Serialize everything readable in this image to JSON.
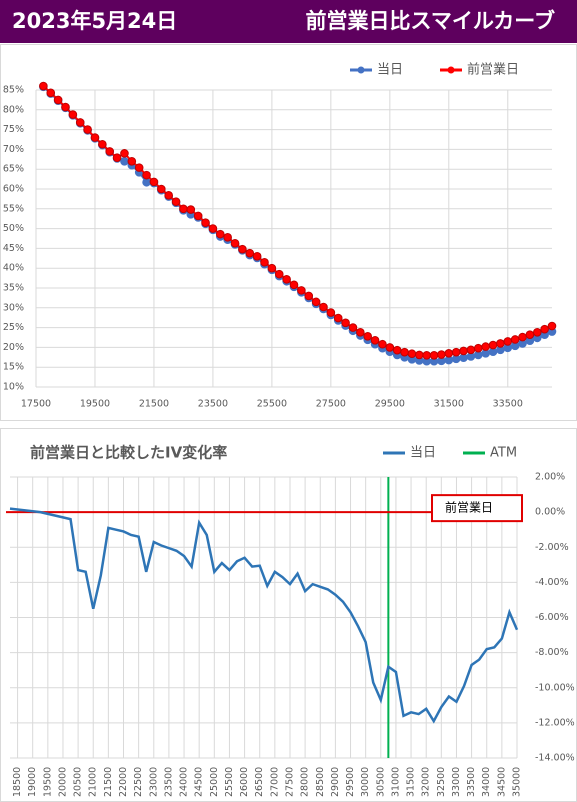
{
  "header": {
    "date": "2023年5月24日",
    "title": "前営業日比スマイルカーブ"
  },
  "chart_data": [
    {
      "type": "line",
      "grid": true,
      "y_axis_side": "left",
      "legend": "top-right",
      "x": [
        17750,
        18000,
        18250,
        18500,
        18750,
        19000,
        19250,
        19500,
        19750,
        20000,
        20250,
        20500,
        20750,
        21000,
        21250,
        21500,
        21750,
        22000,
        22250,
        22500,
        22750,
        23000,
        23250,
        23500,
        23750,
        24000,
        24250,
        24500,
        24750,
        25000,
        25250,
        25500,
        25750,
        26000,
        26250,
        26500,
        26750,
        27000,
        27250,
        27500,
        27750,
        28000,
        28250,
        28500,
        28750,
        29000,
        29250,
        29500,
        29750,
        30000,
        30250,
        30500,
        30750,
        31000,
        31250,
        31500,
        31750,
        32000,
        32250,
        32500,
        32750,
        33000,
        33250,
        33500,
        33750,
        34000,
        34250,
        34500,
        34750,
        35000
      ],
      "xlim": [
        17500,
        35000
      ],
      "xticks": [
        17500,
        19500,
        21500,
        23500,
        25500,
        27500,
        29500,
        31500,
        33500
      ],
      "ylim": [
        10,
        85
      ],
      "yticks": [
        {
          "value": 10,
          "label": "10%"
        },
        {
          "value": 15,
          "label": "15%"
        },
        {
          "value": 20,
          "label": "20%"
        },
        {
          "value": 25,
          "label": "25%"
        },
        {
          "value": 30,
          "label": "30%"
        },
        {
          "value": 35,
          "label": "35%"
        },
        {
          "value": 40,
          "label": "40%"
        },
        {
          "value": 45,
          "label": "45%"
        },
        {
          "value": 50,
          "label": "50%"
        },
        {
          "value": 55,
          "label": "55%"
        },
        {
          "value": 60,
          "label": "60%"
        },
        {
          "value": 65,
          "label": "65%"
        },
        {
          "value": 70,
          "label": "70%"
        },
        {
          "value": 75,
          "label": "75%"
        },
        {
          "value": 80,
          "label": "80%"
        },
        {
          "value": 85,
          "label": "85%"
        }
      ],
      "series": [
        {
          "name": "当日",
          "color": "#4472c4",
          "markers": true,
          "values": [
            85.8,
            84.1,
            82.3,
            80.5,
            78.6,
            76.6,
            74.8,
            72.8,
            71.1,
            69.3,
            67.7,
            67,
            66,
            64.2,
            61.7,
            61.5,
            59.7,
            58.1,
            56.5,
            54.6,
            53.6,
            52.8,
            51.2,
            49.7,
            48,
            47.2,
            46,
            44.5,
            43.3,
            42.6,
            41,
            39.6,
            38,
            36.7,
            35.3,
            33.9,
            32.5,
            31,
            29.7,
            28.2,
            26.8,
            25.5,
            24.2,
            23,
            21.9,
            20.8,
            19.8,
            18.9,
            18.1,
            17.5,
            17,
            16.7,
            16.5,
            16.5,
            16.6,
            16.8,
            17.1,
            17.4,
            17.7,
            18.1,
            18.5,
            18.9,
            19.4,
            19.9,
            20.4,
            21,
            21.7,
            22.4,
            23.2,
            24
          ]
        },
        {
          "name": "前営業日",
          "color": "#ff0000",
          "markers": true,
          "values": [
            86,
            84.3,
            82.5,
            80.7,
            78.8,
            76.8,
            75,
            73,
            71.3,
            69.5,
            67.9,
            69,
            67,
            65.4,
            63.5,
            61.8,
            60,
            58.4,
            56.8,
            55,
            54.8,
            53.2,
            51.5,
            50,
            48.6,
            47.8,
            46.3,
            44.8,
            43.8,
            43,
            41.5,
            40,
            38.5,
            37.2,
            35.8,
            34.4,
            33,
            31.5,
            30.2,
            28.8,
            27.4,
            26.2,
            25,
            23.8,
            22.8,
            21.8,
            20.8,
            20,
            19.3,
            18.8,
            18.4,
            18.1,
            18,
            18,
            18.2,
            18.5,
            18.8,
            19.1,
            19.4,
            19.8,
            20.2,
            20.6,
            21,
            21.5,
            22,
            22.6,
            23.2,
            23.8,
            24.6,
            25.4
          ]
        }
      ]
    },
    {
      "type": "line",
      "title": "前営業日と比較したIV変化率",
      "grid": true,
      "y_axis_side": "right",
      "legend": "top-right",
      "x": [
        18250,
        18500,
        18750,
        19000,
        19250,
        19500,
        19750,
        20000,
        20250,
        20500,
        20750,
        21000,
        21250,
        21500,
        21750,
        22000,
        22250,
        22500,
        22750,
        23000,
        23250,
        23500,
        23750,
        24000,
        24250,
        24500,
        24750,
        25000,
        25250,
        25500,
        25750,
        26000,
        26250,
        26500,
        26750,
        27000,
        27250,
        27500,
        27750,
        28000,
        28250,
        28500,
        28750,
        29000,
        29250,
        29500,
        29750,
        30000,
        30250,
        30500,
        30750,
        31000,
        31250,
        31500,
        31750,
        32000,
        32250,
        32500,
        32750,
        33000,
        33250,
        33500,
        33750,
        34000,
        34250,
        34500,
        34750,
        35000
      ],
      "xlim": [
        18250,
        35000
      ],
      "xticks": [
        18500,
        19000,
        19500,
        20000,
        20500,
        21000,
        21500,
        22000,
        22500,
        23000,
        23500,
        24000,
        24500,
        25000,
        25500,
        26000,
        26500,
        27000,
        27500,
        28000,
        28500,
        29000,
        29500,
        30000,
        30500,
        31000,
        31500,
        32000,
        32500,
        33000,
        33500,
        34000,
        34500,
        35000
      ],
      "ylim": [
        -14,
        2
      ],
      "yticks": [
        {
          "value": 2,
          "label": "2.00%"
        },
        {
          "value": 0,
          "label": "0.00%"
        },
        {
          "value": -2,
          "label": "-2.00%"
        },
        {
          "value": -4,
          "label": "-4.00%"
        },
        {
          "value": -6,
          "label": "-6.00%"
        },
        {
          "value": -8,
          "label": "-8.00%"
        },
        {
          "value": -10,
          "label": "-10.00%"
        },
        {
          "value": -12,
          "label": "-12.00%"
        },
        {
          "value": -14,
          "label": "-14.00%"
        }
      ],
      "series": [
        {
          "name": "当日",
          "color": "#2e75b6",
          "markers": false,
          "values": [
            0.2,
            0.15,
            0.1,
            0.05,
            0,
            -0.1,
            -0.2,
            -0.3,
            -0.4,
            -3.3,
            -3.4,
            -5.5,
            -3.6,
            -0.9,
            -1,
            -1.1,
            -1.3,
            -1.4,
            -3.4,
            -1.7,
            -1.9,
            -2.05,
            -2.2,
            -2.5,
            -3.1,
            -0.6,
            -1.3,
            -3.4,
            -2.9,
            -3.3,
            -2.8,
            -2.6,
            -3.1,
            -3.05,
            -4.2,
            -3.4,
            -3.7,
            -4.1,
            -3.5,
            -4.5,
            -4.1,
            -4.25,
            -4.4,
            -4.7,
            -5.1,
            -5.7,
            -6.5,
            -7.4,
            -9.7,
            -10.7,
            -8.8,
            -9.1,
            -11.6,
            -11.4,
            -11.5,
            -11.2,
            -11.9,
            -11.1,
            -10.5,
            -10.8,
            -9.9,
            -8.7,
            -8.4,
            -7.8,
            -7.7,
            -7.2,
            -5.7,
            -6.7
          ]
        }
      ],
      "reference_lines": [
        {
          "name": "ATM",
          "axis": "x",
          "value": 30750,
          "color": "#00b050"
        },
        {
          "name": "前営業日",
          "axis": "y",
          "value": 0,
          "color": "#e00000"
        }
      ]
    }
  ]
}
